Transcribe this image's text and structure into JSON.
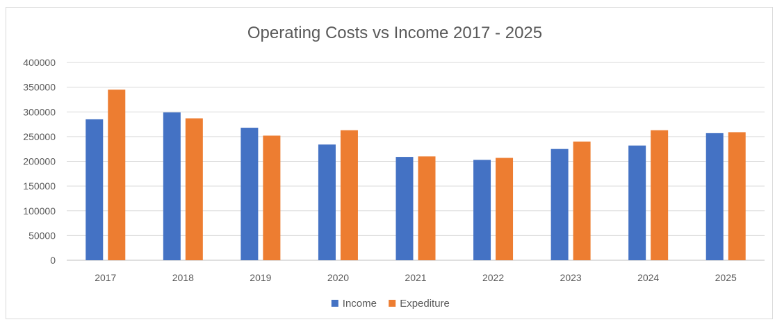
{
  "chart_data": {
    "type": "bar",
    "title": "Operating Costs vs Income 2017 - 2025",
    "xlabel": "",
    "ylabel": "",
    "categories": [
      "2017",
      "2018",
      "2019",
      "2020",
      "2021",
      "2022",
      "2023",
      "2024",
      "2025"
    ],
    "series": [
      {
        "name": "Income",
        "color": "#4472c4",
        "values": [
          285000,
          299000,
          268000,
          234000,
          209000,
          203000,
          225000,
          232000,
          257000
        ]
      },
      {
        "name": "Expediture",
        "color": "#ed7d31",
        "values": [
          345000,
          287000,
          252000,
          263000,
          210000,
          207000,
          240000,
          263000,
          259000
        ]
      }
    ],
    "ylim": [
      0,
      400000
    ],
    "yticks": [
      "0",
      "50000",
      "100000",
      "150000",
      "200000",
      "250000",
      "300000",
      "350000",
      "400000"
    ],
    "grid": true,
    "legend_position": "bottom",
    "gridline_color": "#d9d9d9",
    "axis_color": "#bfbfbf"
  }
}
